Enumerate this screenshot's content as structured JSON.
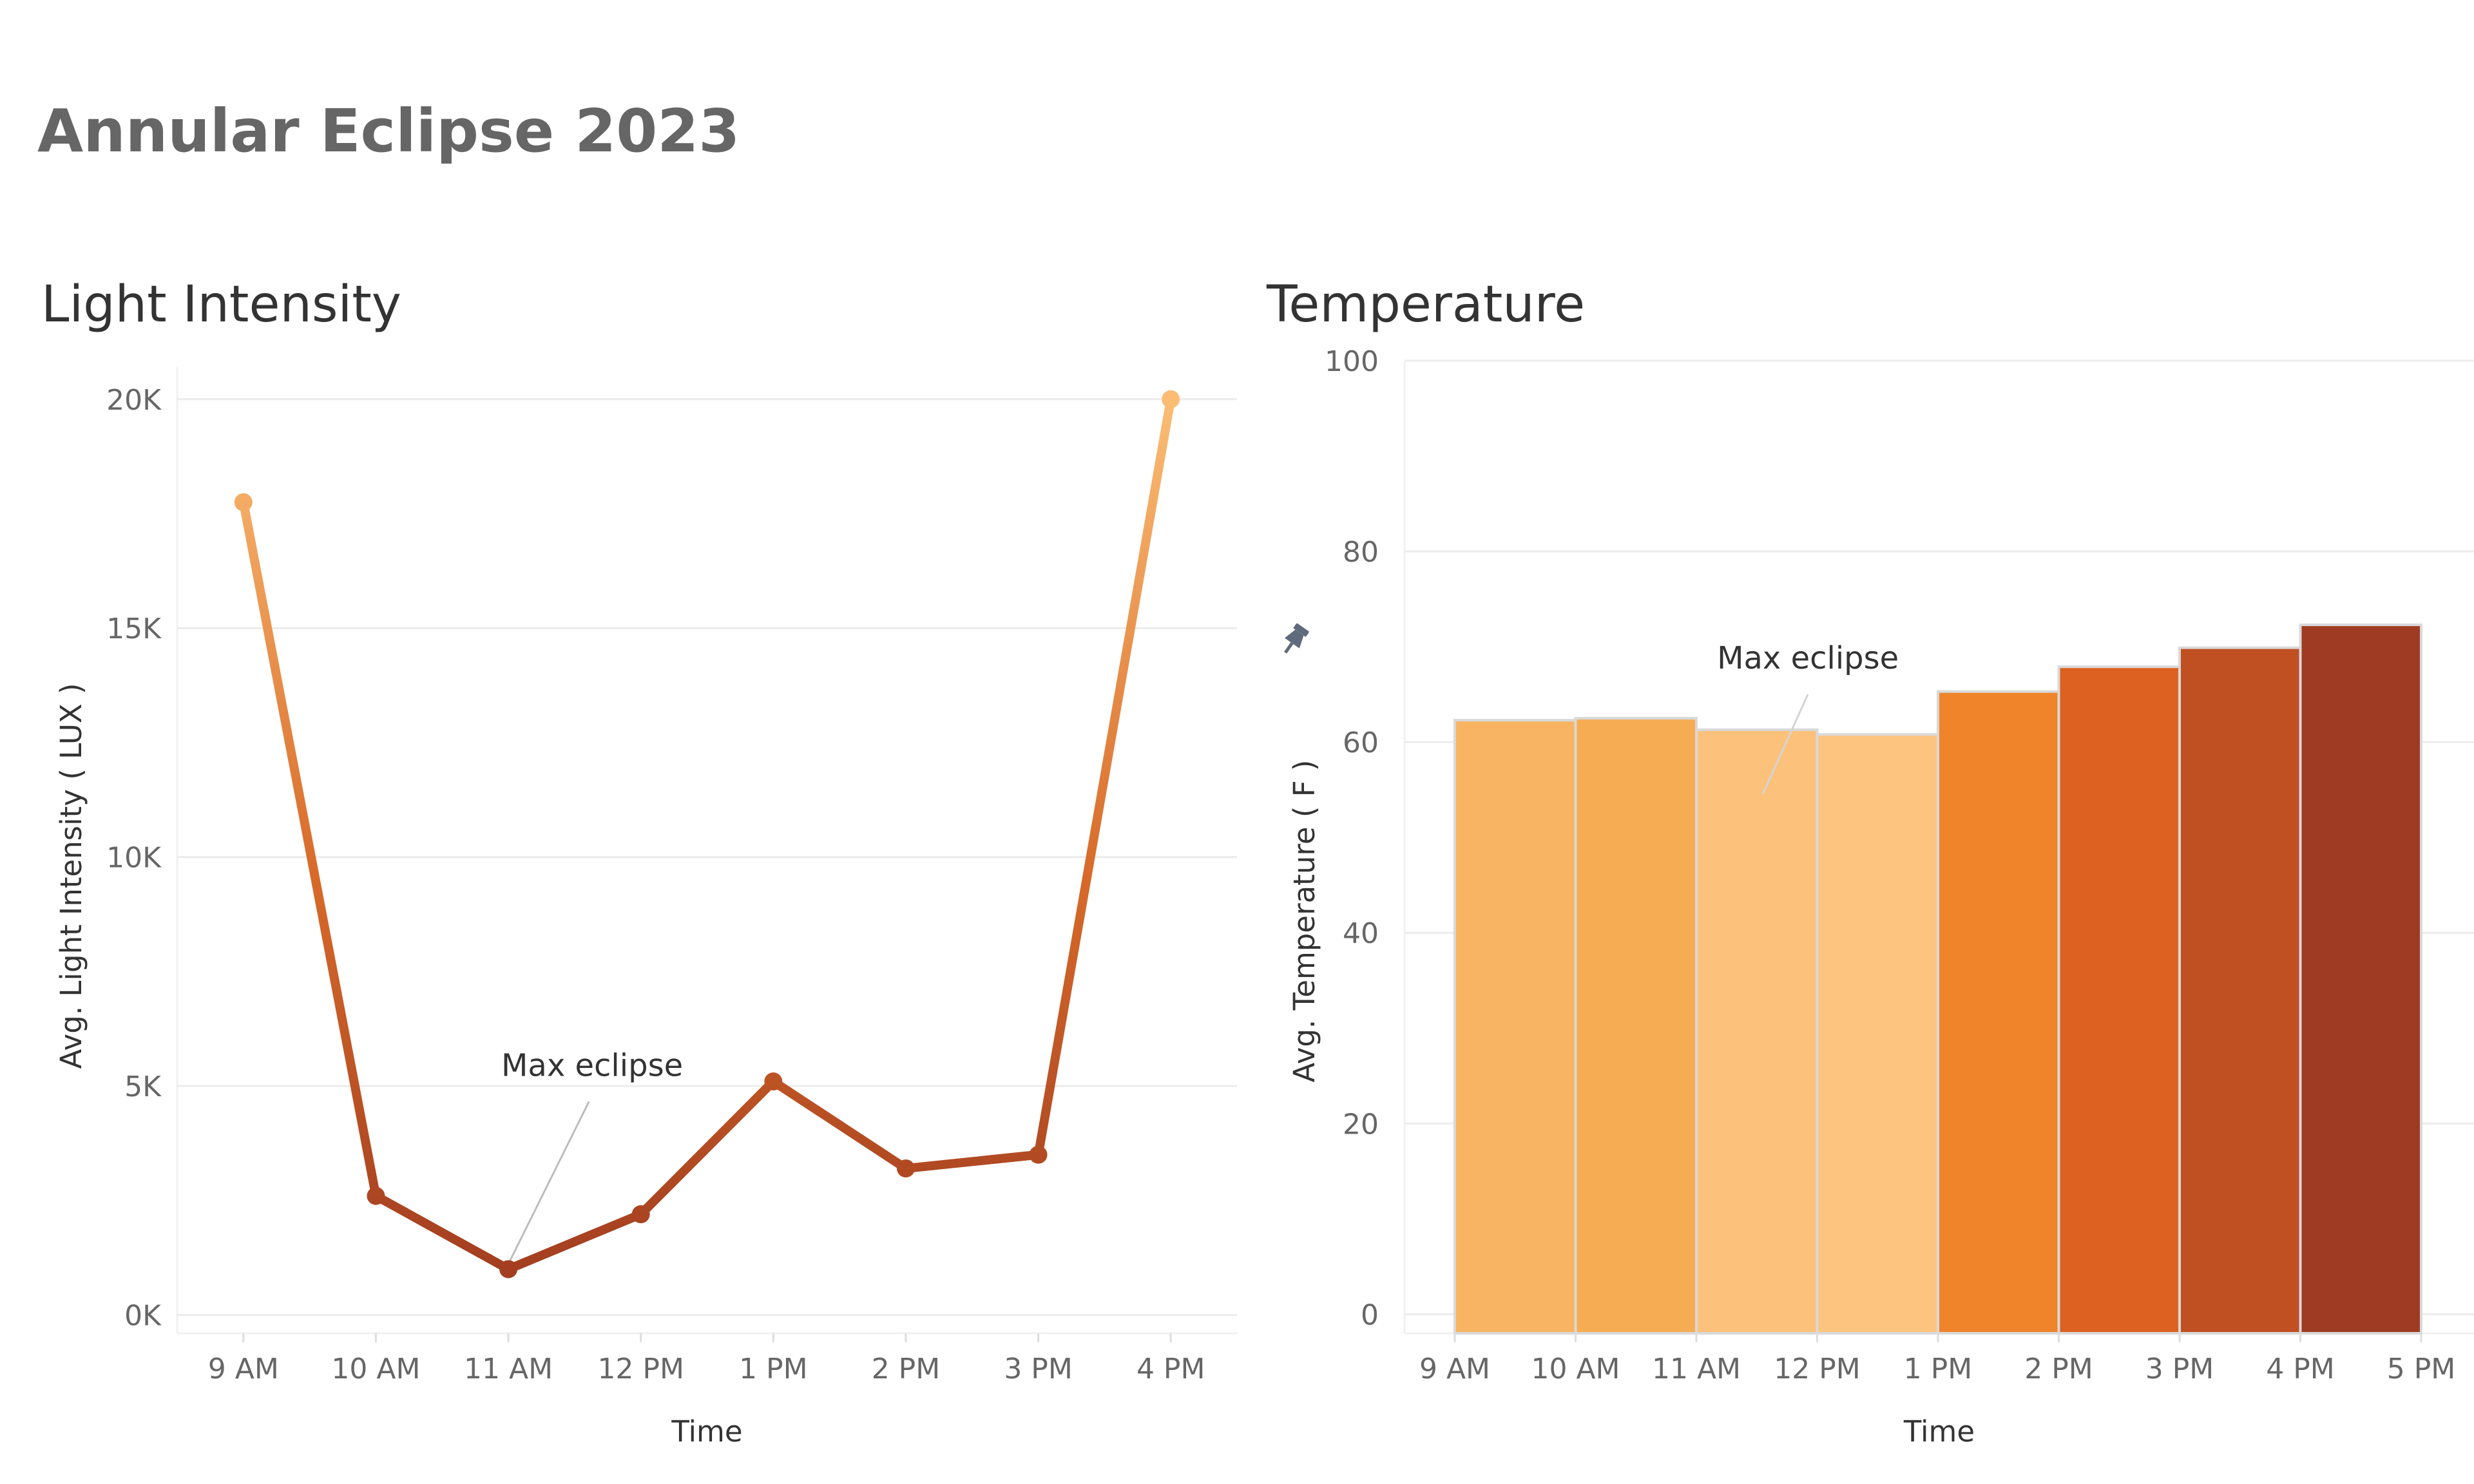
{
  "dashboard_title": "Annular Eclipse 2023",
  "chart_data": [
    {
      "type": "line",
      "title": "Light Intensity",
      "xlabel": "Time",
      "ylabel": "Avg. Light Intensity ( LUX )",
      "categories": [
        "9 AM",
        "10 AM",
        "11 AM",
        "12 PM",
        "1 PM",
        "2 PM",
        "3 PM",
        "4 PM"
      ],
      "values": [
        17750,
        2600,
        1000,
        2200,
        5100,
        3200,
        3500,
        20000
      ],
      "y_ticks": [
        0,
        5000,
        10000,
        15000,
        20000
      ],
      "y_tick_labels": [
        "0K",
        "5K",
        "10K",
        "15K",
        "20K"
      ],
      "ylim": [
        -400,
        20700
      ],
      "grid": true,
      "annotation": {
        "text": "Max eclipse",
        "category": "11 AM"
      },
      "colors": {
        "low": "#a33e20",
        "mid": "#d76a2a",
        "high": "#fbbd74"
      }
    },
    {
      "type": "bar",
      "title": "Temperature",
      "xlabel": "Time",
      "ylabel": "Avg. Temperature ( F )",
      "x_tick_labels": [
        "9 AM",
        "10 AM",
        "11 AM",
        "12 PM",
        "1 PM",
        "2 PM",
        "3 PM",
        "4 PM",
        "5 PM"
      ],
      "bins": [
        {
          "start": "9 AM",
          "end": "10 AM",
          "value": 62.3,
          "color": "#f8b462"
        },
        {
          "start": "10 AM",
          "end": "11 AM",
          "value": 62.5,
          "color": "#f6ac52"
        },
        {
          "start": "11 AM",
          "end": "12 PM",
          "value": 61.3,
          "color": "#fcc17a"
        },
        {
          "start": "12 PM",
          "end": "1 PM",
          "value": 60.8,
          "color": "#fdc47f"
        },
        {
          "start": "1 PM",
          "end": "2 PM",
          "value": 65.3,
          "color": "#ef842a"
        },
        {
          "start": "2 PM",
          "end": "3 PM",
          "value": 67.9,
          "color": "#dd6120"
        },
        {
          "start": "3 PM",
          "end": "4 PM",
          "value": 69.9,
          "color": "#c04f22"
        },
        {
          "start": "4 PM",
          "end": "5 PM",
          "value": 72.3,
          "color": "#9f3b22"
        }
      ],
      "y_ticks": [
        0,
        20,
        40,
        60,
        80,
        100
      ],
      "y_tick_labels": [
        "0",
        "20",
        "40",
        "60",
        "80",
        "100"
      ],
      "ylim": [
        -2,
        100
      ],
      "grid": true,
      "annotation": {
        "text": "Max eclipse",
        "category": "11 AM"
      }
    }
  ],
  "icons": {
    "pin": "pin-icon"
  }
}
